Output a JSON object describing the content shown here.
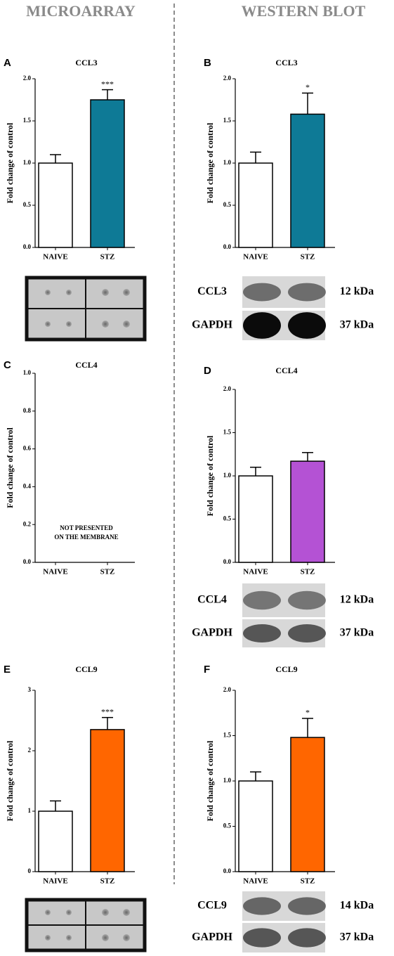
{
  "headers": [
    "MICROARRAY",
    "WESTERN BLOT"
  ],
  "chart_data": [
    {
      "type": "bar",
      "panel": "A",
      "title": "CCL3",
      "ylabel": "Fold change of control",
      "categories": [
        "NAIVE",
        "STZ"
      ],
      "values": [
        1.0,
        1.75
      ],
      "errors": [
        0.1,
        0.12
      ],
      "colors": [
        "#ffffff",
        "#0e7a96"
      ],
      "annotation": "***",
      "ylim": [
        0,
        2
      ],
      "yticks": [
        {
          "value": 0,
          "label": "0.0"
        },
        {
          "value": 0.5,
          "label": "0.5"
        },
        {
          "value": 1,
          "label": "1.0"
        },
        {
          "value": 1.5,
          "label": "1.5"
        },
        {
          "value": 2,
          "label": "2.0"
        }
      ]
    },
    {
      "type": "bar",
      "panel": "B",
      "title": "CCL3",
      "ylabel": "Fold change of control",
      "categories": [
        "NAIVE",
        "STZ"
      ],
      "values": [
        1.0,
        1.58
      ],
      "errors": [
        0.13,
        0.25
      ],
      "colors": [
        "#ffffff",
        "#0e7a96"
      ],
      "annotation": "*",
      "ylim": [
        0,
        2
      ],
      "yticks": [
        {
          "value": 0,
          "label": "0.0"
        },
        {
          "value": 0.5,
          "label": "0.5"
        },
        {
          "value": 1,
          "label": "1.0"
        },
        {
          "value": 1.5,
          "label": "1.5"
        },
        {
          "value": 2,
          "label": "2.0"
        }
      ]
    },
    {
      "type": "bar",
      "panel": "C",
      "title": "CCL4",
      "ylabel": "Fold change of control",
      "categories": [
        "NAIVE",
        "STZ"
      ],
      "note": [
        "NOT PRESENTED",
        "ON THE MEMBRANE"
      ],
      "ylim": [
        0,
        1
      ],
      "yticks": [
        {
          "value": 0,
          "label": "0.0"
        },
        {
          "value": 0.2,
          "label": "0.2"
        },
        {
          "value": 0.4,
          "label": "0.4"
        },
        {
          "value": 0.6,
          "label": "0.6"
        },
        {
          "value": 0.8,
          "label": "0.8"
        },
        {
          "value": 1,
          "label": "1.0"
        }
      ]
    },
    {
      "type": "bar",
      "panel": "D",
      "title": "CCL4",
      "ylabel": "Fold change of control",
      "categories": [
        "NAIVE",
        "STZ"
      ],
      "values": [
        1.0,
        1.17
      ],
      "errors": [
        0.1,
        0.1
      ],
      "colors": [
        "#ffffff",
        "#b452d4"
      ],
      "ylim": [
        0,
        2
      ],
      "yticks": [
        {
          "value": 0,
          "label": "0.0"
        },
        {
          "value": 0.5,
          "label": "0.5"
        },
        {
          "value": 1,
          "label": "1.0"
        },
        {
          "value": 1.5,
          "label": "1.5"
        },
        {
          "value": 2,
          "label": "2.0"
        }
      ]
    },
    {
      "type": "bar",
      "panel": "E",
      "title": "CCL9",
      "ylabel": "Fold change of control",
      "categories": [
        "NAIVE",
        "STZ"
      ],
      "values": [
        1.0,
        2.35
      ],
      "errors": [
        0.17,
        0.2
      ],
      "colors": [
        "#ffffff",
        "#ff6600"
      ],
      "annotation": "***",
      "ylim": [
        0,
        3
      ],
      "yticks": [
        0,
        1,
        2,
        3
      ]
    },
    {
      "type": "bar",
      "panel": "F",
      "title": "CCL9",
      "ylabel": "Fold change of control",
      "categories": [
        "NAIVE",
        "STZ"
      ],
      "values": [
        1.0,
        1.48
      ],
      "errors": [
        0.1,
        0.21
      ],
      "colors": [
        "#ffffff",
        "#ff6600"
      ],
      "annotation": "*",
      "ylim": [
        0,
        2
      ],
      "yticks": [
        {
          "value": 0,
          "label": "0.0"
        },
        {
          "value": 0.5,
          "label": "0.5"
        },
        {
          "value": 1,
          "label": "1.0"
        },
        {
          "value": 1.5,
          "label": "1.5"
        },
        {
          "value": 2,
          "label": "2.0"
        }
      ]
    }
  ],
  "blots": [
    {
      "rows": [
        {
          "protein": "CCL3",
          "size": "12 kDa"
        },
        {
          "protein": "GAPDH",
          "size": "37 kDa"
        }
      ]
    },
    {
      "rows": [
        {
          "protein": "CCL4",
          "size": "12 kDa"
        },
        {
          "protein": "GAPDH",
          "size": "37 kDa"
        }
      ]
    },
    {
      "rows": [
        {
          "protein": "CCL9",
          "size": "14 kDa"
        },
        {
          "protein": "GAPDH",
          "size": "37 kDa"
        }
      ]
    }
  ]
}
